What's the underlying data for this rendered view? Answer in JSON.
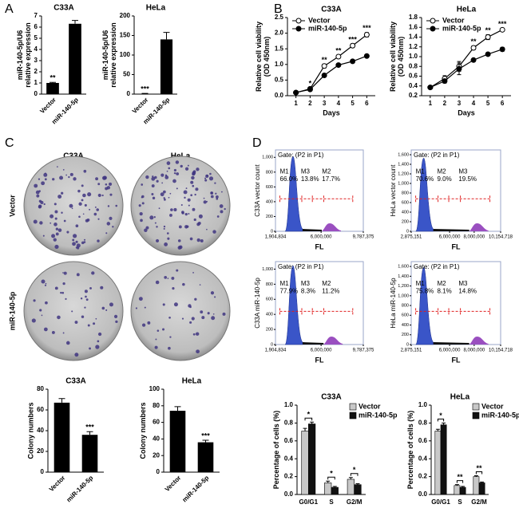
{
  "panel_labels": [
    "A",
    "B",
    "C",
    "D"
  ],
  "colony": {
    "columns": [
      "C33A",
      "HeLa"
    ],
    "rows": [
      "Vector",
      "miR-140-5p"
    ]
  },
  "chart_data": [
    {
      "type": "bar",
      "title": "C33A",
      "ylabel": [
        "miR-140-5p/U6",
        "relative expression"
      ],
      "categories": [
        "Vector",
        "miR-140-5p"
      ],
      "values": [
        1,
        6.3
      ],
      "errors": [
        0.05,
        0.3
      ],
      "annotations": [
        "**",
        null
      ],
      "color": "#000000",
      "ylim": [
        0,
        7
      ],
      "yticks": [
        0,
        1,
        2,
        3,
        4,
        5,
        6,
        7
      ]
    },
    {
      "type": "bar",
      "title": "HeLa",
      "ylabel": [
        "miR-140-5p/U6",
        "relative expression"
      ],
      "categories": [
        "Vector",
        "miR-140-5p"
      ],
      "values": [
        1,
        140
      ],
      "errors": [
        0.8,
        18
      ],
      "annotations": [
        "***",
        null
      ],
      "color": "#000000",
      "ylim": [
        0,
        200
      ],
      "yticks": [
        0,
        50,
        100,
        150,
        200
      ]
    },
    {
      "type": "line",
      "title": "C33A",
      "xlabel": "Days",
      "ylabel": [
        "Relative cell viability",
        "(OD 450nm)"
      ],
      "x": [
        1,
        2,
        3,
        4,
        5,
        6
      ],
      "xlim": [
        0.4,
        6.6
      ],
      "xticks": [
        1,
        2,
        3,
        4,
        5,
        6
      ],
      "ylim": [
        0,
        2.5
      ],
      "yticks": [
        {
          "value": 0,
          "label": "0.0"
        },
        0.5,
        {
          "value": 1,
          "label": "1.0"
        },
        1.5,
        {
          "value": 2,
          "label": "2.0"
        },
        2.5
      ],
      "series": [
        {
          "name": "Vector",
          "color": "#000000",
          "marker": "open",
          "values": [
            0.1,
            0.22,
            0.95,
            1.25,
            1.6,
            1.95
          ],
          "errors": [
            0.02,
            0.03,
            0.06,
            0.05,
            0.06,
            0.07
          ]
        },
        {
          "name": "miR-140-5p",
          "color": "#000000",
          "marker": "filled",
          "values": [
            0.1,
            0.2,
            0.65,
            0.98,
            1.1,
            1.27
          ],
          "errors": [
            0.02,
            0.02,
            0.04,
            0.05,
            0.05,
            0.04
          ]
        }
      ],
      "annotations": [
        null,
        "*",
        "**",
        "**",
        "***",
        "***"
      ]
    },
    {
      "type": "line",
      "title": "HeLa",
      "xlabel": "Days",
      "ylabel": [
        "Relative cell viability",
        "(OD 450nm)"
      ],
      "x": [
        1,
        2,
        3,
        4,
        5,
        6
      ],
      "xlim": [
        0.4,
        6.6
      ],
      "xticks": [
        1,
        2,
        3,
        4,
        5,
        6
      ],
      "ylim": [
        0.2,
        1.8
      ],
      "yticks": [
        0.2,
        0.4,
        0.6,
        0.8,
        {
          "value": 1,
          "label": "1.0"
        },
        1.2,
        1.4,
        1.6,
        1.8
      ],
      "series": [
        {
          "name": "Vector",
          "color": "#000000",
          "marker": "open",
          "values": [
            0.37,
            0.55,
            0.8,
            1.18,
            1.4,
            1.55
          ],
          "errors": [
            0.02,
            0.06,
            0.1,
            0.04,
            0.05,
            0.03
          ]
        },
        {
          "name": "miR-140-5p",
          "color": "#000000",
          "marker": "filled",
          "values": [
            0.37,
            0.5,
            0.75,
            0.93,
            1.05,
            1.15
          ],
          "errors": [
            0.02,
            0.04,
            0.12,
            0.03,
            0.03,
            0.04
          ]
        }
      ],
      "annotations": [
        null,
        null,
        null,
        "**",
        "**",
        "***"
      ]
    },
    {
      "type": "bar",
      "title": "C33A",
      "ylabel": [
        "Colony numbers"
      ],
      "categories": [
        "Vector",
        "miR-140-5p"
      ],
      "values": [
        67,
        36
      ],
      "errors": [
        4,
        3
      ],
      "annotations": [
        null,
        "***"
      ],
      "color": "#000000",
      "ylim": [
        0,
        80
      ],
      "yticks": [
        0,
        20,
        40,
        60,
        80
      ]
    },
    {
      "type": "bar",
      "title": "HeLa",
      "ylabel": [
        "Colony numbers"
      ],
      "categories": [
        "Vector",
        "miR-140-5p"
      ],
      "values": [
        74,
        36
      ],
      "errors": [
        5,
        2.5
      ],
      "annotations": [
        null,
        "***"
      ],
      "color": "#000000",
      "ylim": [
        0,
        100
      ],
      "yticks": [
        0,
        20,
        40,
        60,
        80,
        100
      ]
    },
    {
      "type": "grouped_bar",
      "title": "C33A",
      "ylabel": [
        "Percentage of cells (%)"
      ],
      "categories": [
        "G0/G1",
        "S",
        "G2/M"
      ],
      "ylim": [
        0,
        1
      ],
      "yticks": [
        {
          "value": 0,
          "label": "0.0"
        },
        0.2,
        0.4,
        0.6,
        0.8,
        {
          "value": 1,
          "label": "1.0"
        }
      ],
      "series": [
        {
          "name": "Vector",
          "color": "#c8c8c8",
          "values": [
            0.71,
            0.13,
            0.17
          ],
          "errors": [
            0.03,
            0.02,
            0.02
          ]
        },
        {
          "name": "miR-140-5p",
          "color": "#111111",
          "values": [
            0.79,
            0.08,
            0.11
          ],
          "errors": [
            0.02,
            0.01,
            0.01
          ]
        }
      ],
      "annotations": [
        "*",
        "*",
        "*"
      ]
    },
    {
      "type": "grouped_bar",
      "title": "HeLa",
      "ylabel": [
        "Percentage of cells (%)"
      ],
      "categories": [
        "G0/G1",
        "S",
        "G2/M"
      ],
      "ylim": [
        0,
        1
      ],
      "yticks": [
        {
          "value": 0,
          "label": "0.0"
        },
        0.2,
        0.4,
        0.6,
        0.8,
        {
          "value": 1,
          "label": "1.0"
        }
      ],
      "series": [
        {
          "name": "Vector",
          "color": "#c8c8c8",
          "values": [
            0.71,
            0.1,
            0.2
          ],
          "errors": [
            0.02,
            0.01,
            0.01
          ]
        },
        {
          "name": "miR-140-5p",
          "color": "#111111",
          "values": [
            0.78,
            0.08,
            0.13
          ],
          "errors": [
            0.02,
            0.01,
            0.01
          ]
        }
      ],
      "annotations": [
        "*",
        "**",
        "**"
      ]
    }
  ],
  "flow_panels": [
    {
      "title": "Gate: (P2 in P1)",
      "ylabel": "C33A vector count",
      "xlabel": "FL",
      "ylim": [
        0,
        1100
      ],
      "yticks": [
        0,
        200,
        400,
        600,
        800,
        {
          "value": 1000,
          "label": "1,000"
        }
      ],
      "xlim": [
        1904834,
        9787375
      ],
      "xticks": [
        {
          "value": 1904834,
          "label": "1,904,834"
        },
        {
          "value": 6000000,
          "label": "6,000,000"
        },
        {
          "value": 9787375,
          "label": "9,787,375"
        }
      ],
      "gates": [
        {
          "name": "M1",
          "value": 66.0,
          "value_label": "66.0%"
        },
        {
          "name": "M3",
          "value": 13.8,
          "value_label": "13.8%"
        },
        {
          "name": "M2",
          "value": 17.7,
          "value_label": "17.7%"
        }
      ]
    },
    {
      "title": "Gate: (P2 in P1)",
      "ylabel": "HeLa vector count",
      "xlabel": "FL",
      "ylim": [
        0,
        1700
      ],
      "yticks": [
        0,
        200,
        400,
        600,
        800,
        {
          "value": 1000,
          "label": "1,000"
        },
        {
          "value": 1200,
          "label": "1,200"
        },
        {
          "value": 1400,
          "label": "1,400"
        },
        {
          "value": 1600,
          "label": "1,600"
        }
      ],
      "xlim": [
        2875151,
        10154718
      ],
      "xticks": [
        {
          "value": 2875151,
          "label": "2,875,151"
        },
        {
          "value": 6000000,
          "label": "6,000,000"
        },
        {
          "value": 8000000,
          "label": "8,000,000"
        },
        {
          "value": 10154718,
          "label": "10,154,718"
        }
      ],
      "gates": [
        {
          "name": "M1",
          "value": 70.6,
          "value_label": "70.6%"
        },
        {
          "name": "M2",
          "value": 9.0,
          "value_label": "9.0%"
        },
        {
          "name": "M3",
          "value": 19.5,
          "value_label": "19.5%"
        }
      ]
    },
    {
      "title": "Gate: (P2 in P1)",
      "ylabel": "C33A miR-140-5p",
      "xlabel": "FL",
      "ylim": [
        0,
        1100
      ],
      "yticks": [
        0,
        200,
        400,
        600,
        800,
        {
          "value": 1000,
          "label": "1,000"
        }
      ],
      "xlim": [
        1904834,
        9787375
      ],
      "xticks": [
        {
          "value": 1904834,
          "label": "1,904,834"
        },
        {
          "value": 6000000,
          "label": "6,000,000"
        },
        {
          "value": 9787375,
          "label": "9,787,375"
        }
      ],
      "gates": [
        {
          "name": "M1",
          "value": 77.9,
          "value_label": "77.9%"
        },
        {
          "name": "M3",
          "value": 8.3,
          "value_label": "8.3%"
        },
        {
          "name": "M2",
          "value": 11.2,
          "value_label": "11.2%"
        }
      ]
    },
    {
      "title": "Gate: (P2 in P1)",
      "ylabel": "HeLa miR-140-5p",
      "xlabel": "FL",
      "ylim": [
        0,
        1700
      ],
      "yticks": [
        0,
        200,
        400,
        600,
        800,
        {
          "value": 1000,
          "label": "1,000"
        },
        {
          "value": 1200,
          "label": "1,200"
        },
        {
          "value": 1400,
          "label": "1,400"
        },
        {
          "value": 1600,
          "label": "1,600"
        }
      ],
      "xlim": [
        2875151,
        10154718
      ],
      "xticks": [
        {
          "value": 2875151,
          "label": "2,875,151"
        },
        {
          "value": 6000000,
          "label": "6,000,000"
        },
        {
          "value": 8000000,
          "label": "8,000,000"
        },
        {
          "value": 10154718,
          "label": "10,154,718"
        }
      ],
      "gates": [
        {
          "name": "M1",
          "value": 75.8,
          "value_label": "75.8%"
        },
        {
          "name": "M2",
          "value": 8.1,
          "value_label": "8.1%"
        },
        {
          "name": "M3",
          "value": 14.8,
          "value_label": "14.8%"
        }
      ]
    }
  ]
}
